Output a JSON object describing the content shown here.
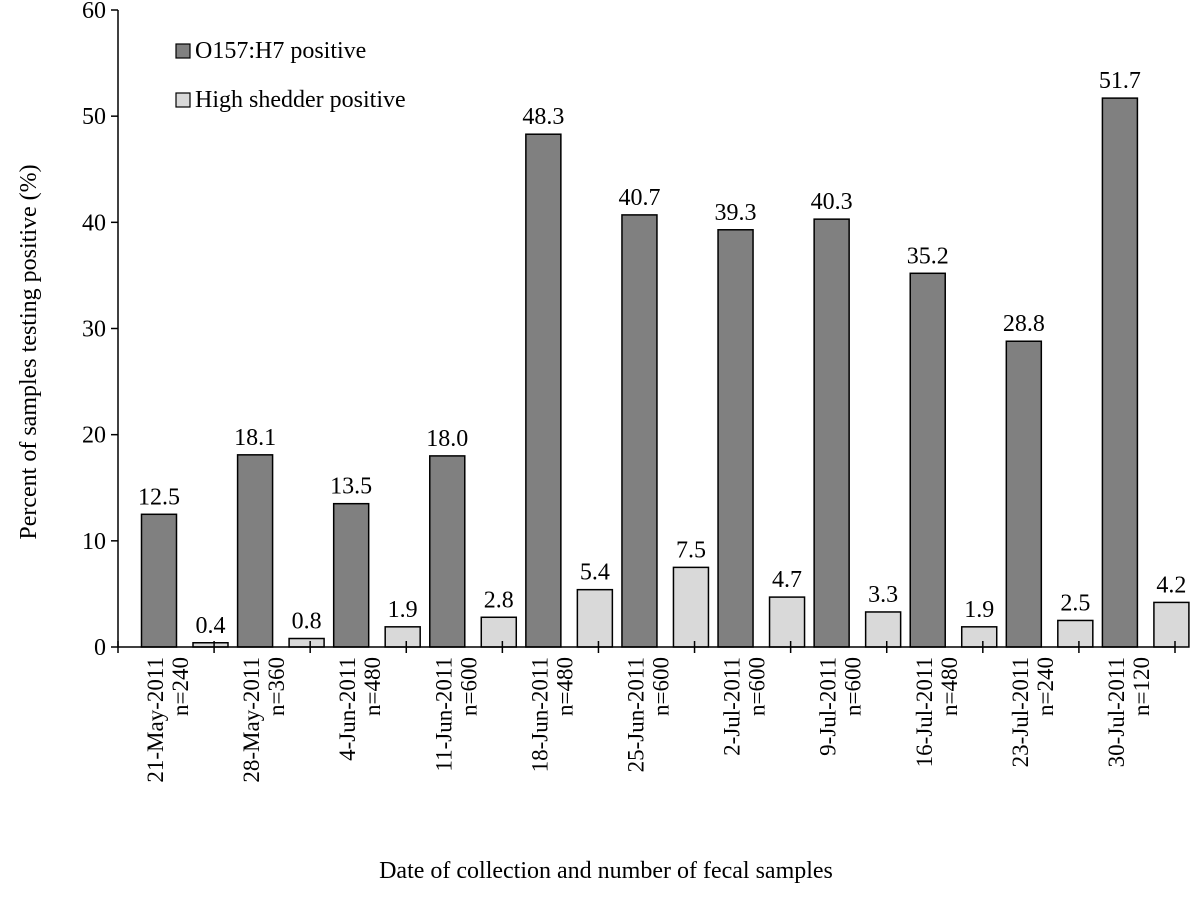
{
  "chart_data": {
    "type": "bar",
    "title": "",
    "xlabel": "Date  of collection and number of fecal samples",
    "ylabel": "Percent of samples testing positive (%)",
    "ylim": [
      0,
      60
    ],
    "yticks": [
      0,
      10,
      20,
      30,
      40,
      50,
      60
    ],
    "grid": false,
    "legend_position": "top-left",
    "categories": [
      {
        "date": "21-May-2011",
        "n": "n=240"
      },
      {
        "date": "28-May-2011",
        "n": "n=360"
      },
      {
        "date": "4-Jun-2011",
        "n": "n=480"
      },
      {
        "date": "11-Jun-2011",
        "n": "n=600"
      },
      {
        "date": "18-Jun-2011",
        "n": "n=480"
      },
      {
        "date": "25-Jun-2011",
        "n": "n=600"
      },
      {
        "date": "2-Jul-2011",
        "n": "n=600"
      },
      {
        "date": "9-Jul-2011",
        "n": "n=600"
      },
      {
        "date": "16-Jul-2011",
        "n": "n=480"
      },
      {
        "date": "23-Jul-2011",
        "n": "n=240"
      },
      {
        "date": "30-Jul-2011",
        "n": "n=120"
      }
    ],
    "series": [
      {
        "name": "O157:H7 positive",
        "color": "#808080",
        "values": [
          12.5,
          18.1,
          13.5,
          18.0,
          48.3,
          40.7,
          39.3,
          40.3,
          35.2,
          28.8,
          51.7
        ],
        "labels": [
          "12.5",
          "18.1",
          "13.5",
          "18.0",
          "48.3",
          "40.7",
          "39.3",
          "40.3",
          "35.2",
          "28.8",
          "51.7"
        ]
      },
      {
        "name": "High shedder positive",
        "color": "#d9d9d9",
        "values": [
          0.4,
          0.8,
          1.9,
          2.8,
          5.4,
          7.5,
          4.7,
          3.3,
          1.9,
          2.5,
          4.2
        ],
        "labels": [
          "0.4",
          "0.8",
          "1.9",
          "2.8",
          "5.4",
          "7.5",
          "4.7",
          "3.3",
          "1.9",
          "2.5",
          "4.2"
        ]
      }
    ]
  }
}
